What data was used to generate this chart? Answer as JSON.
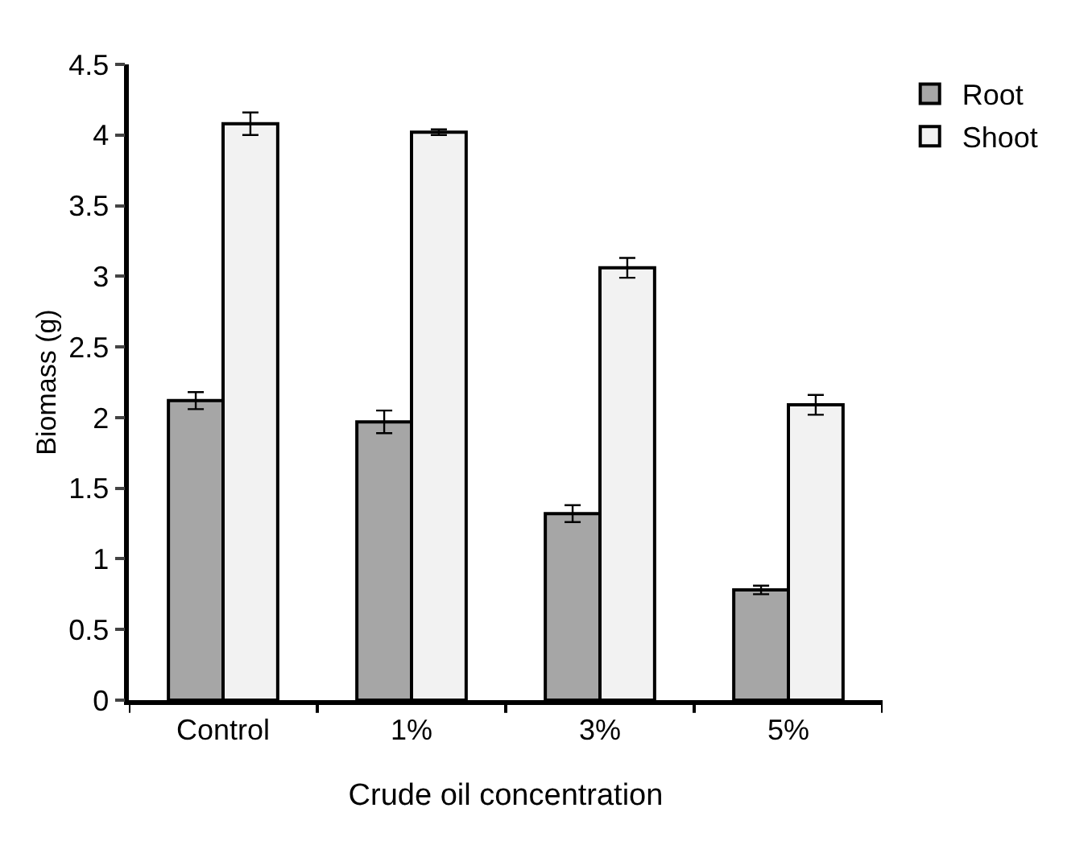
{
  "chart_data": {
    "type": "bar",
    "xlabel": "Crude oil concentration",
    "ylabel": "Biomass (g)",
    "categories": [
      "Control",
      "1%",
      "3%",
      "5%"
    ],
    "series": [
      {
        "name": "Root",
        "color": "#a6a6a6",
        "values": [
          2.12,
          1.97,
          1.32,
          0.78
        ],
        "errors": [
          0.06,
          0.08,
          0.06,
          0.03
        ]
      },
      {
        "name": "Shoot",
        "color": "#f2f2f2",
        "values": [
          4.08,
          4.02,
          3.06,
          2.09
        ],
        "errors": [
          0.08,
          0.02,
          0.07,
          0.07
        ]
      }
    ],
    "ylim": [
      0,
      4.5
    ],
    "yticks": [
      0,
      0.5,
      1,
      1.5,
      2,
      2.5,
      3,
      3.5,
      4,
      4.5
    ],
    "grid": false,
    "legend": "top right"
  }
}
